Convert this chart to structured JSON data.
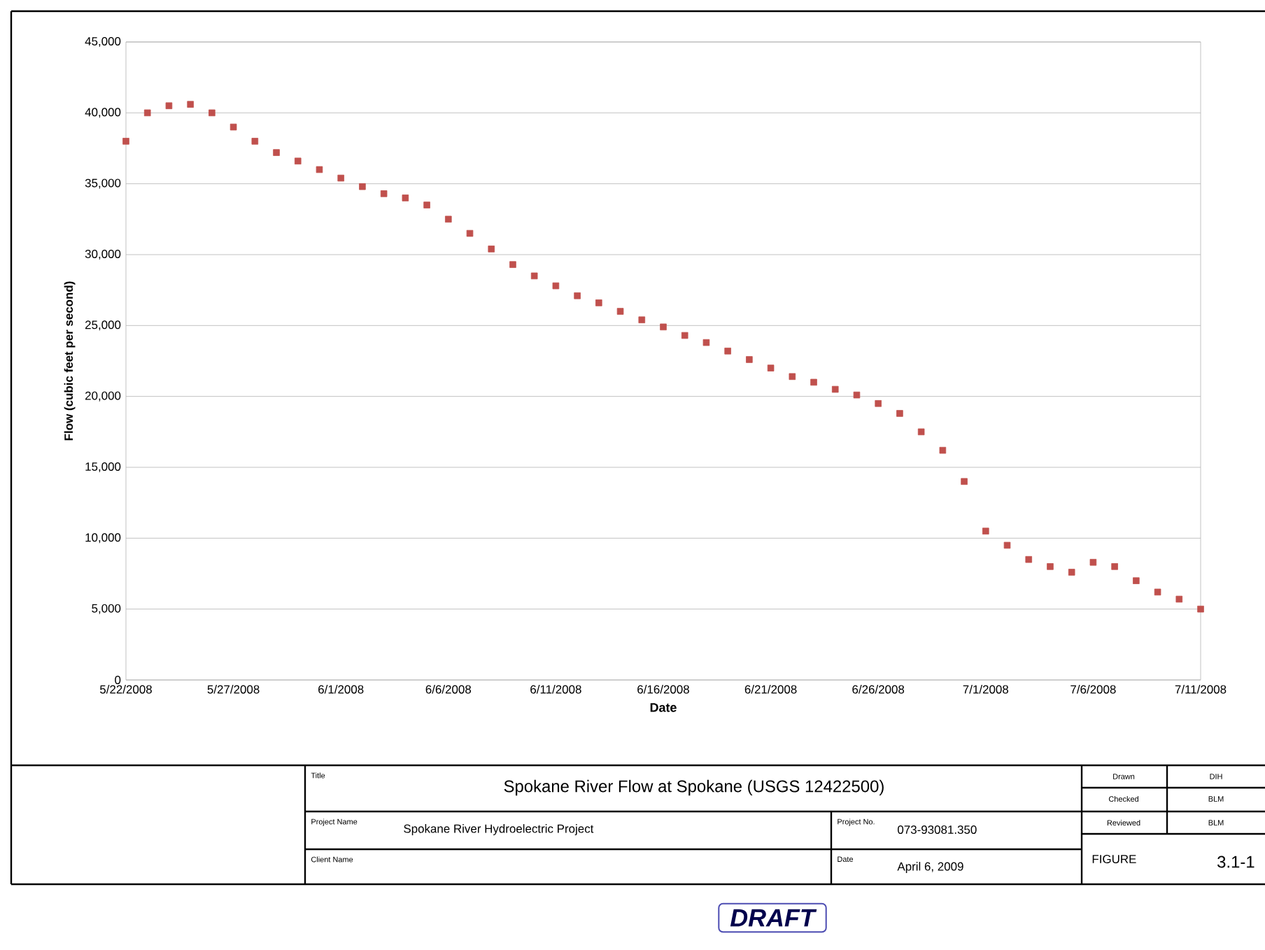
{
  "chart_data": {
    "type": "scatter",
    "title": "Spokane River Flow at Spokane (USGS 12422500)",
    "xlabel": "Date",
    "ylabel": "Flow (cubic feet per second)",
    "x": [
      "2008-05-22",
      "2008-05-23",
      "2008-05-24",
      "2008-05-25",
      "2008-05-26",
      "2008-05-27",
      "2008-05-28",
      "2008-05-29",
      "2008-05-30",
      "2008-05-31",
      "2008-06-01",
      "2008-06-02",
      "2008-06-03",
      "2008-06-04",
      "2008-06-05",
      "2008-06-06",
      "2008-06-07",
      "2008-06-08",
      "2008-06-09",
      "2008-06-10",
      "2008-06-11",
      "2008-06-12",
      "2008-06-13",
      "2008-06-14",
      "2008-06-15",
      "2008-06-16",
      "2008-06-17",
      "2008-06-18",
      "2008-06-19",
      "2008-06-20",
      "2008-06-21",
      "2008-06-22",
      "2008-06-23",
      "2008-06-24",
      "2008-06-25",
      "2008-06-26",
      "2008-06-27",
      "2008-06-28",
      "2008-06-29",
      "2008-06-30",
      "2008-07-01",
      "2008-07-02",
      "2008-07-03",
      "2008-07-04",
      "2008-07-05",
      "2008-07-06",
      "2008-07-07",
      "2008-07-08",
      "2008-07-09",
      "2008-07-10",
      "2008-07-11"
    ],
    "series": [
      {
        "color": "#c0504d",
        "values": [
          38000,
          40000,
          40500,
          40600,
          40000,
          39000,
          38000,
          37200,
          36600,
          36000,
          35400,
          34800,
          34300,
          34000,
          33500,
          32500,
          31500,
          30400,
          29300,
          28500,
          27800,
          27100,
          26600,
          26000,
          25400,
          24900,
          24300,
          23800,
          23200,
          22600,
          22000,
          21400,
          21000,
          20500,
          20100,
          19500,
          18800,
          17500,
          16200,
          14000,
          10500,
          9500,
          8500,
          8000,
          7600,
          8300,
          8000,
          7000,
          6200,
          5700,
          5000
        ]
      }
    ],
    "xlim": [
      "2008-05-22",
      "2008-07-11"
    ],
    "xticks": [
      {
        "value": "2008-05-22",
        "label": "5/22/2008"
      },
      {
        "value": "2008-05-27",
        "label": "5/27/2008"
      },
      {
        "value": "2008-06-01",
        "label": "6/1/2008"
      },
      {
        "value": "2008-06-06",
        "label": "6/6/2008"
      },
      {
        "value": "2008-06-11",
        "label": "6/11/2008"
      },
      {
        "value": "2008-06-16",
        "label": "6/16/2008"
      },
      {
        "value": "2008-06-21",
        "label": "6/21/2008"
      },
      {
        "value": "2008-06-26",
        "label": "6/26/2008"
      },
      {
        "value": "2008-07-01",
        "label": "7/1/2008"
      },
      {
        "value": "2008-07-06",
        "label": "7/6/2008"
      },
      {
        "value": "2008-07-11",
        "label": "7/11/2008"
      }
    ],
    "ylim": [
      0,
      45000
    ],
    "yticks": [
      {
        "value": 0,
        "label": "0"
      },
      {
        "value": 5000,
        "label": "5,000"
      },
      {
        "value": 10000,
        "label": "10,000"
      },
      {
        "value": 15000,
        "label": "15,000"
      },
      {
        "value": 20000,
        "label": "20,000"
      },
      {
        "value": 25000,
        "label": "25,000"
      },
      {
        "value": 30000,
        "label": "30,000"
      },
      {
        "value": 35000,
        "label": "35,000"
      },
      {
        "value": 40000,
        "label": "40,000"
      },
      {
        "value": 45000,
        "label": "45,000"
      }
    ],
    "grid": "y",
    "marker": "square",
    "annotations": [
      "Title",
      "Project Name",
      "Spokane River Hydroelectric Project",
      "Client Name",
      "Project No.",
      "073-93081.350",
      "Date",
      "April 6, 2009",
      "Drawn",
      "DIH",
      "Checked",
      "BLM",
      "Reviewed",
      "BLM",
      "FIGURE",
      "3.1-1",
      "DRAFT"
    ]
  }
}
